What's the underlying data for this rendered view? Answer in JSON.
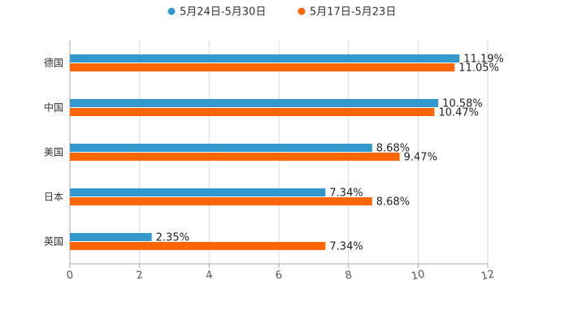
{
  "chart_data": {
    "type": "bar",
    "orientation": "horizontal",
    "categories": [
      "德国",
      "中国",
      "美国",
      "日本",
      "英国"
    ],
    "series": [
      {
        "name": "5月24日-5月30日",
        "color": "#3399cc",
        "values": [
          11.19,
          10.58,
          8.68,
          7.34,
          2.35
        ],
        "labels": [
          "11.19%",
          "10.58%",
          "8.68%",
          "7.34%",
          "2.35%"
        ]
      },
      {
        "name": "5月17日-5月23日",
        "color": "#ff6600",
        "values": [
          11.05,
          10.47,
          9.47,
          8.68,
          7.34
        ],
        "labels": [
          "11.05%",
          "10.47%",
          "9.47%",
          "8.68%",
          "7.34%"
        ]
      }
    ],
    "xlim": [
      0,
      12
    ],
    "xticks": [
      "0",
      "2",
      "4",
      "6",
      "8",
      "10",
      "12"
    ],
    "xtick_values": [
      0,
      2,
      4,
      6,
      8,
      10,
      12
    ],
    "grid": true,
    "legend_position": "top-center",
    "title": "",
    "xlabel": "",
    "ylabel": ""
  }
}
